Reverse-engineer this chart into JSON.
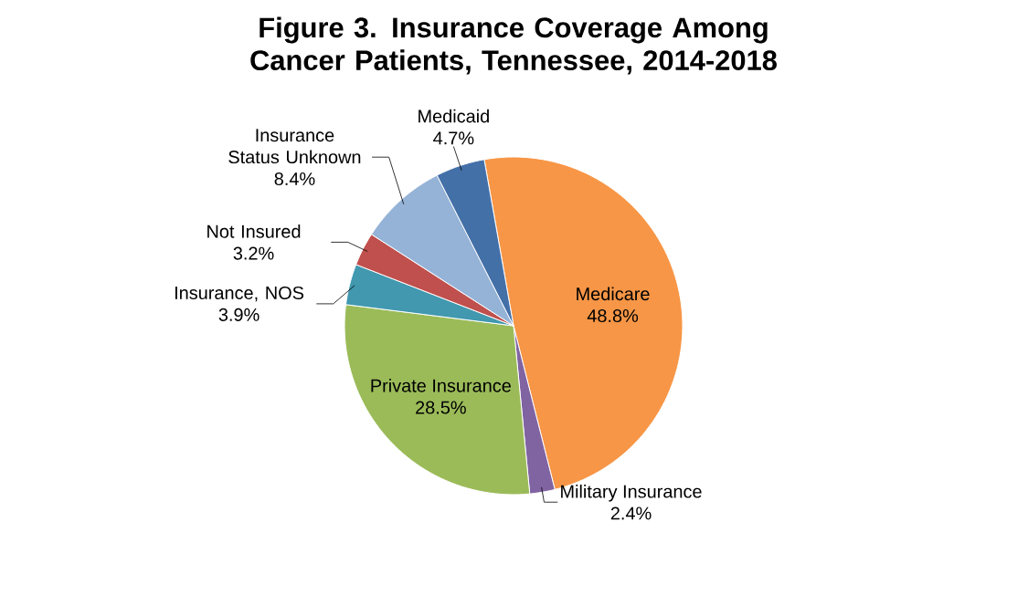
{
  "chart_data": {
    "type": "pie",
    "title": "Figure 3. Insurance Coverage Among Cancer Patients, Tennessee, 2014-2018",
    "categories": [
      "Medicare",
      "Military Insurance",
      "Private Insurance",
      "Insurance, NOS",
      "Not Insured",
      "Insurance Status Unknown",
      "Medicaid"
    ],
    "values": [
      48.8,
      2.4,
      28.5,
      3.9,
      3.2,
      8.4,
      4.7
    ],
    "value_labels": [
      "48.8%",
      "2.4%",
      "28.5%",
      "3.9%",
      "3.2%",
      "8.4%",
      "4.7%"
    ],
    "colors": [
      "#f79646",
      "#8064a2",
      "#9bbb59",
      "#4198af",
      "#c0504d",
      "#95b3d7",
      "#4470a8"
    ]
  }
}
